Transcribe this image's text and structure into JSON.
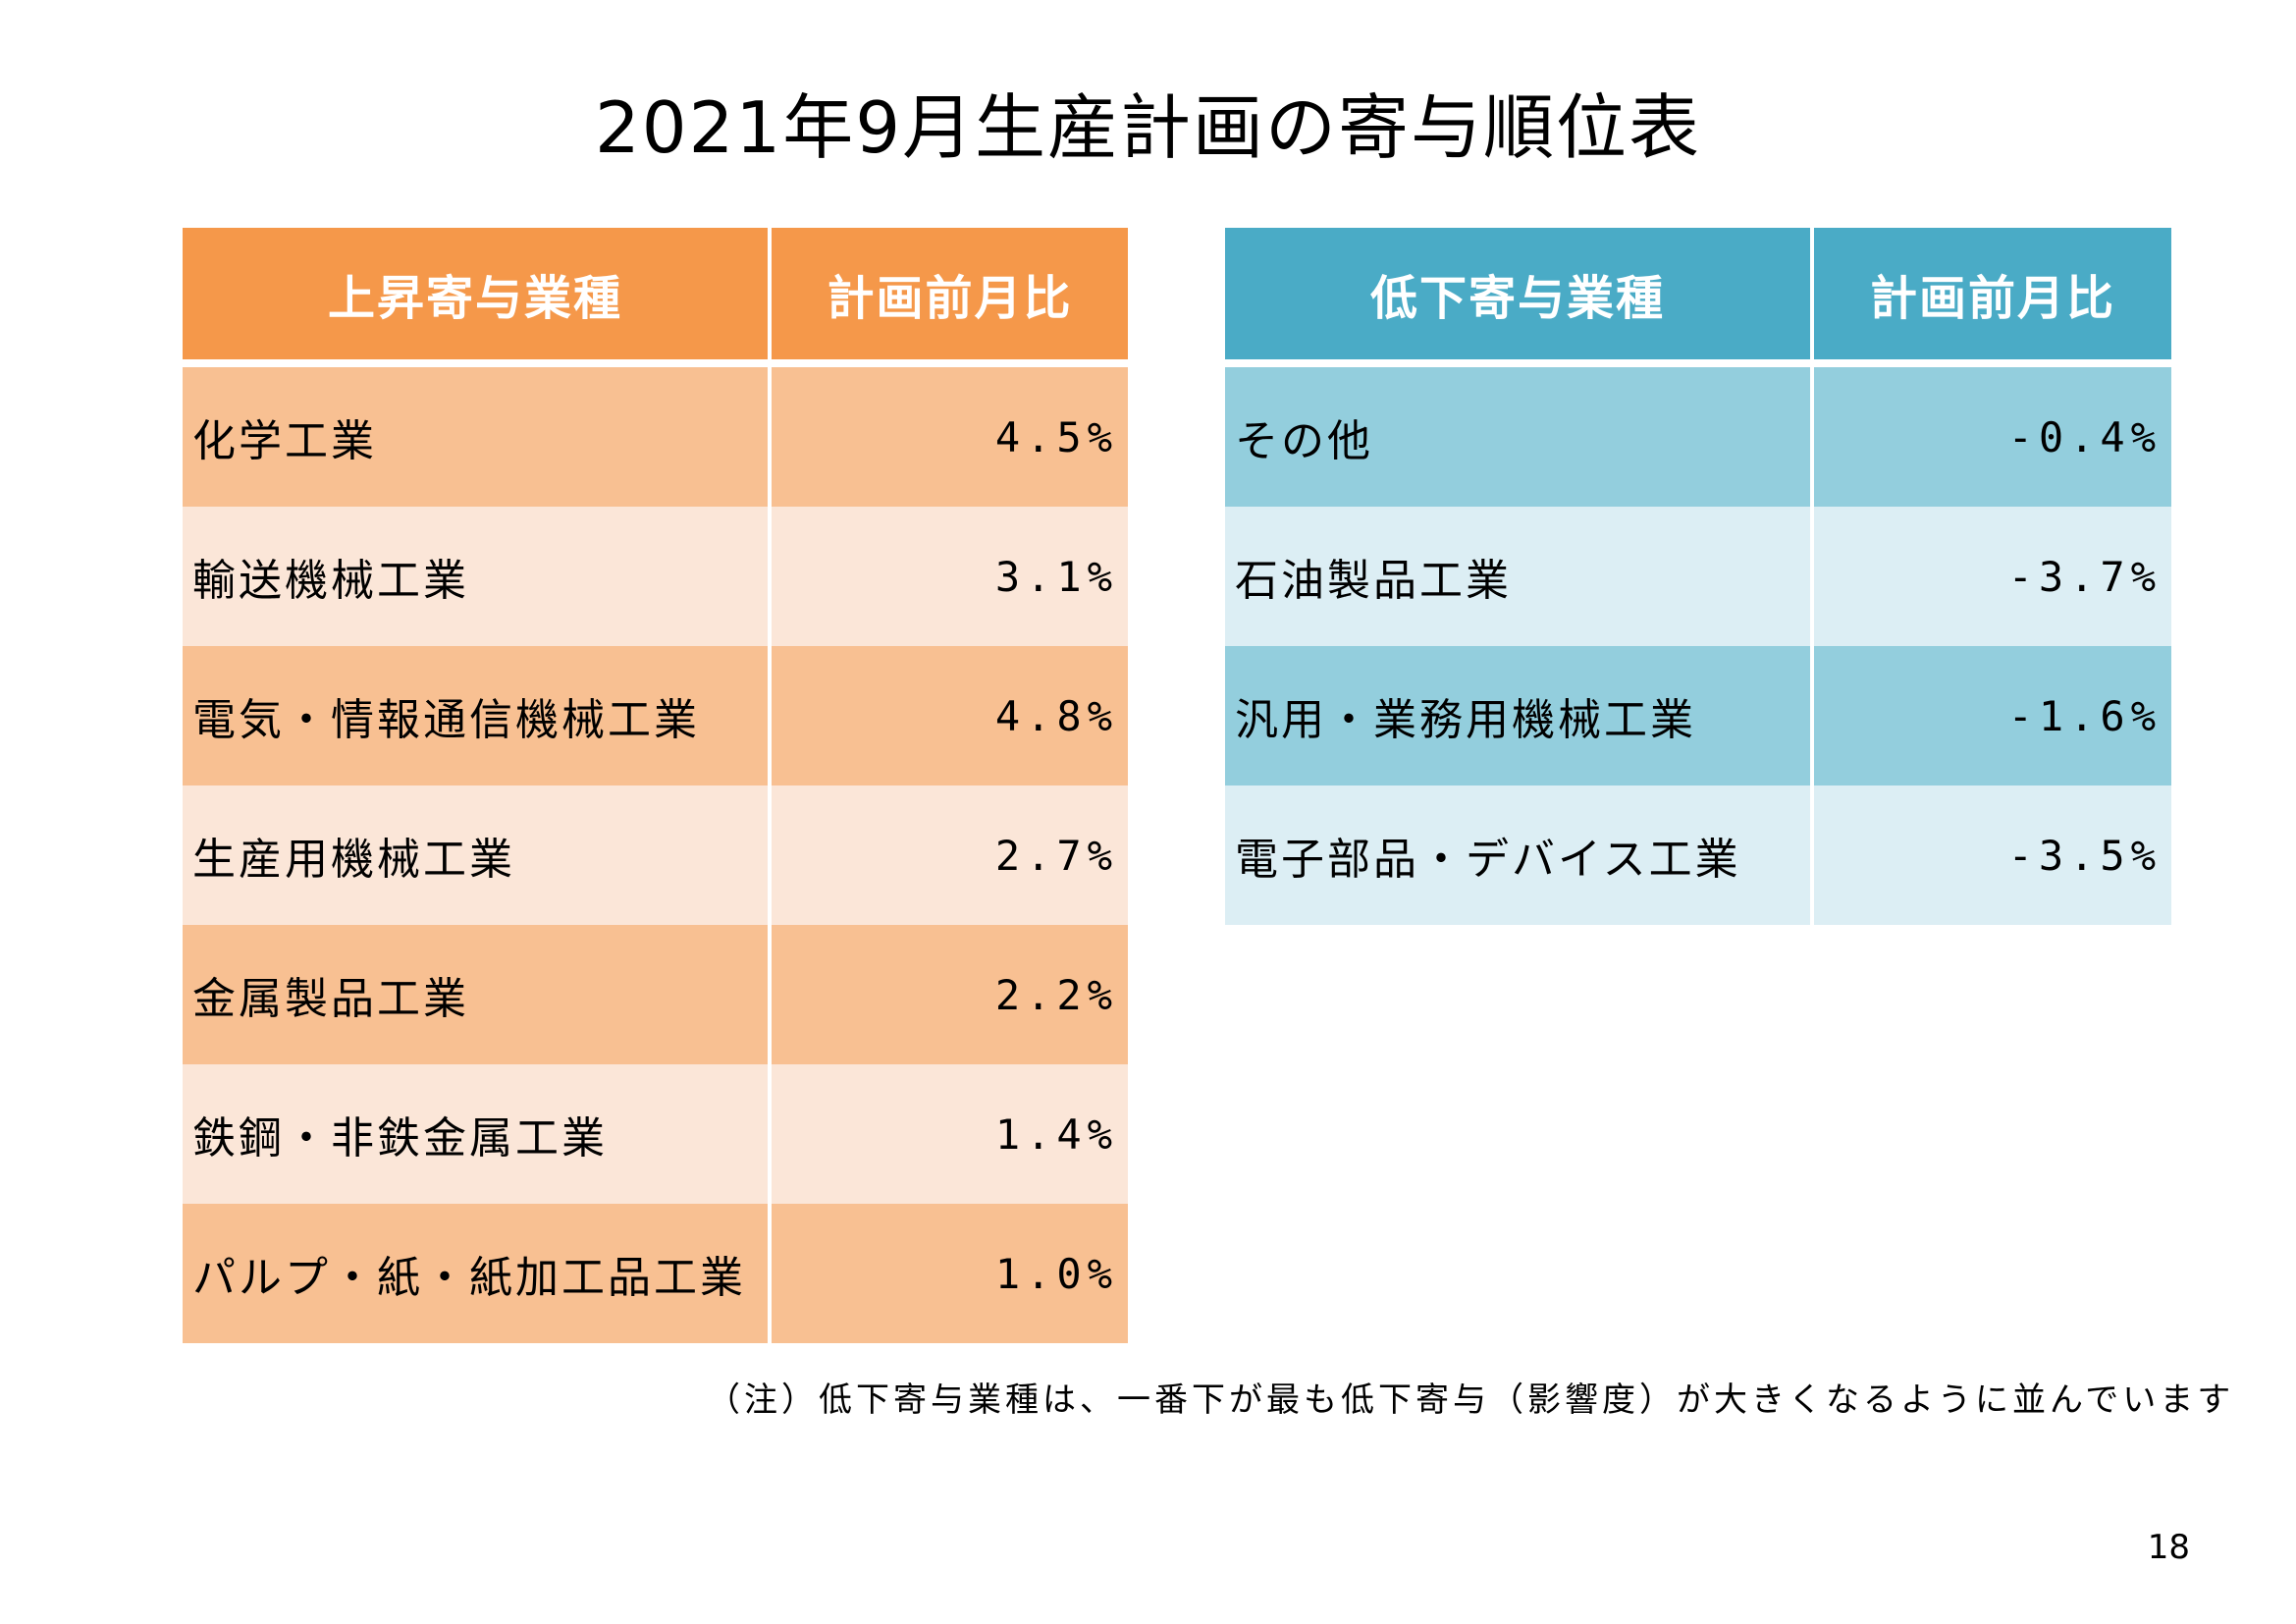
{
  "title": "2021年9月生産計画の寄与順位表",
  "colors": {
    "increase_header": "#f5984a",
    "increase_row_dark": "#f8c092",
    "increase_row_light": "#fbe6d8",
    "decrease_header": "#4aabc6",
    "decrease_row_dark": "#93cedd",
    "decrease_row_light": "#dceef4"
  },
  "increase_table": {
    "headers": [
      "上昇寄与業種",
      "計画前月比"
    ],
    "rows": [
      {
        "industry": "化学工業",
        "value": "4.5%"
      },
      {
        "industry": "輸送機械工業",
        "value": "3.1%"
      },
      {
        "industry": "電気・情報通信機械工業",
        "value": "4.8%"
      },
      {
        "industry": "生産用機械工業",
        "value": "2.7%"
      },
      {
        "industry": "金属製品工業",
        "value": "2.2%"
      },
      {
        "industry": "鉄鋼・非鉄金属工業",
        "value": "1.4%"
      },
      {
        "industry": "パルプ・紙・紙加工品工業",
        "value": "1.0%"
      }
    ]
  },
  "decrease_table": {
    "headers": [
      "低下寄与業種",
      "計画前月比"
    ],
    "rows": [
      {
        "industry": "その他",
        "value": "-0.4%"
      },
      {
        "industry": "石油製品工業",
        "value": "-3.7%"
      },
      {
        "industry": "汎用・業務用機械工業",
        "value": "-1.6%"
      },
      {
        "industry": "電子部品・デバイス工業",
        "value": "-3.5%"
      }
    ]
  },
  "note": "（注）低下寄与業種は、一番下が最も低下寄与（影響度）が大きくなるように並んでいます",
  "page_number": "18"
}
